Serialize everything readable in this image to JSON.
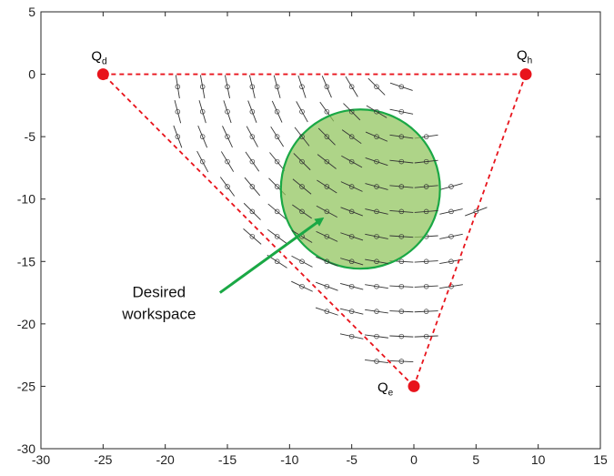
{
  "chart_data": {
    "type": "scatter",
    "title": "",
    "xlabel": "",
    "ylabel": "",
    "xlim": [
      -30,
      15
    ],
    "ylim": [
      -30,
      5
    ],
    "xticks": [
      -30,
      -25,
      -20,
      -15,
      -10,
      -5,
      0,
      5,
      10,
      15
    ],
    "yticks": [
      5,
      0,
      -5,
      -10,
      -15,
      -20,
      -25,
      -30
    ],
    "grid": false,
    "points": [
      {
        "name": "Qd",
        "base": "Q",
        "sub": "d",
        "x": -25,
        "y": 0,
        "color": "#e8141c"
      },
      {
        "name": "Qh",
        "base": "Q",
        "sub": "h",
        "x": 9,
        "y": 0,
        "color": "#e8141c"
      },
      {
        "name": "Qe",
        "base": "Q",
        "sub": "e",
        "x": 0,
        "y": -25,
        "color": "#e8141c"
      }
    ],
    "triangle": {
      "color": "#e8141c",
      "style": "dashed",
      "vertices": [
        "Qd",
        "Qh",
        "Qe"
      ]
    },
    "workspace": {
      "center": [
        -4.3,
        -9.2
      ],
      "radius": 6.4,
      "fill": "#8fc35a",
      "stroke": "#1aa845",
      "label_lines": [
        "Desired",
        "workspace"
      ],
      "label_at": [
        -20.5,
        -18
      ],
      "arrow_from": [
        -15.6,
        -17.5
      ],
      "arrow_to": [
        -7.4,
        -11.6
      ]
    },
    "field_series": {
      "name": "orientation samples",
      "marker": "circle-with-line",
      "color": "#333333",
      "rows": [
        {
          "y": -1,
          "x_start": -19,
          "x_end": -1,
          "step": 2
        },
        {
          "y": -3,
          "x_start": -19,
          "x_end": -1,
          "step": 2
        },
        {
          "y": -5,
          "x_start": -19,
          "x_end": 1,
          "step": 2
        },
        {
          "y": -7,
          "x_start": -17,
          "x_end": 1,
          "step": 2
        },
        {
          "y": -9,
          "x_start": -15,
          "x_end": 3,
          "step": 2
        },
        {
          "y": -11,
          "x_start": -13,
          "x_end": 5,
          "step": 2
        },
        {
          "y": -13,
          "x_start": -13,
          "x_end": 3,
          "step": 2
        },
        {
          "y": -15,
          "x_start": -11,
          "x_end": 3,
          "step": 2
        },
        {
          "y": -17,
          "x_start": -9,
          "x_end": 3,
          "step": 2
        },
        {
          "y": -19,
          "x_start": -7,
          "x_end": 1,
          "step": 2
        },
        {
          "y": -21,
          "x_start": -5,
          "x_end": 1,
          "step": 2
        },
        {
          "y": -23,
          "x_start": -3,
          "x_end": -1,
          "step": 2
        }
      ]
    }
  }
}
